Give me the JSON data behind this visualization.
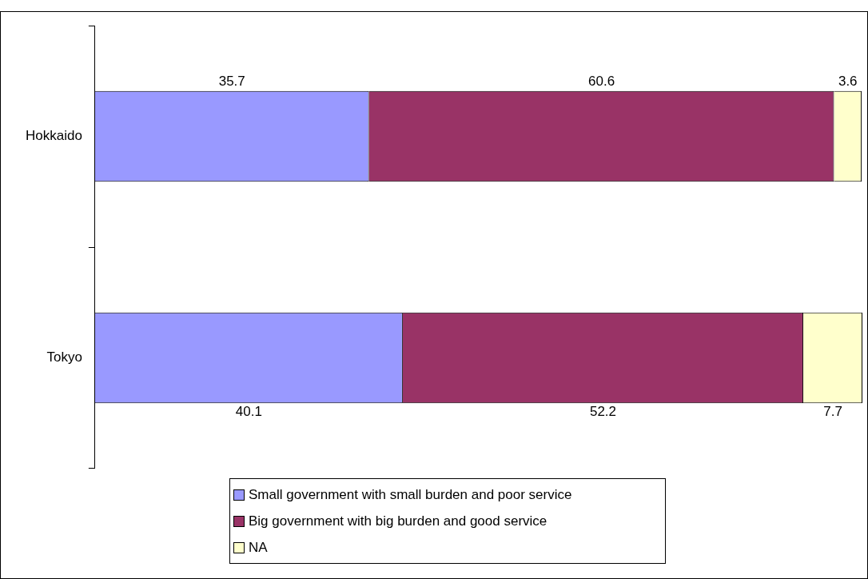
{
  "chart_data": {
    "type": "bar",
    "orientation": "horizontal",
    "stacked": true,
    "categories": [
      "Hokkaido",
      "Tokyo"
    ],
    "series": [
      {
        "name": "Small government with small burden and poor service",
        "color": "#9999ff",
        "values": [
          35.7,
          40.1
        ]
      },
      {
        "name": "Big government with big burden and good service",
        "color": "#993366",
        "values": [
          60.6,
          52.2
        ]
      },
      {
        "name": "NA",
        "color": "#ffffcc",
        "values": [
          3.6,
          7.7
        ]
      }
    ],
    "tick_labels": "y",
    "data_labels": true,
    "legend": "bottom"
  }
}
